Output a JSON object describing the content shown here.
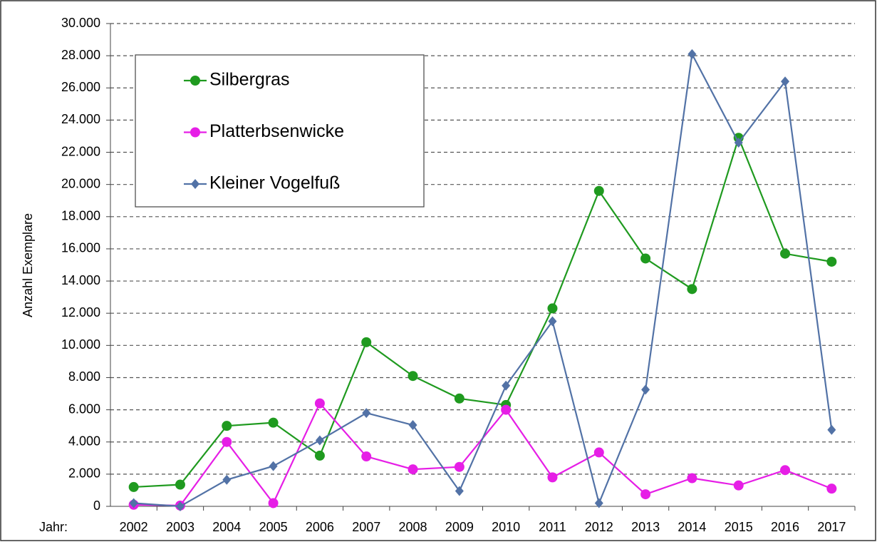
{
  "chart_data": {
    "type": "line",
    "ylabel": "Anzahl Exemplare",
    "xlabel": "Jahr:",
    "categories": [
      "2002",
      "2003",
      "2004",
      "2005",
      "2006",
      "2007",
      "2008",
      "2009",
      "2010",
      "2011",
      "2012",
      "2013",
      "2014",
      "2015",
      "2016",
      "2017"
    ],
    "series": [
      {
        "name": "Silbergras",
        "color": "#1f9a1f",
        "marker": "circle",
        "values": [
          1200,
          1350,
          5000,
          5200,
          3150,
          10200,
          8100,
          6700,
          6300,
          12300,
          19600,
          15400,
          13500,
          22900,
          15700,
          15200
        ]
      },
      {
        "name": "Platterbsenwicke",
        "color": "#e61ee6",
        "marker": "circle",
        "values": [
          100,
          50,
          4000,
          200,
          6400,
          3100,
          2300,
          2450,
          6000,
          1800,
          3350,
          750,
          1750,
          1300,
          2250,
          1100
        ]
      },
      {
        "name": "Kleiner Vogelfuß",
        "color": "#5272a6",
        "marker": "diamond",
        "values": [
          200,
          0,
          1650,
          2500,
          4100,
          5800,
          5050,
          950,
          7500,
          11500,
          200,
          7250,
          28100,
          22600,
          26400,
          4750
        ]
      }
    ],
    "ylim": [
      0,
      30000
    ],
    "yticks": [
      {
        "value": 0,
        "label": "0"
      },
      {
        "value": 2000,
        "label": "2.000"
      },
      {
        "value": 4000,
        "label": "4.000"
      },
      {
        "value": 6000,
        "label": "6.000"
      },
      {
        "value": 8000,
        "label": "8.000"
      },
      {
        "value": 10000,
        "label": "10.000"
      },
      {
        "value": 12000,
        "label": "12.000"
      },
      {
        "value": 14000,
        "label": "14.000"
      },
      {
        "value": 16000,
        "label": "16.000"
      },
      {
        "value": 18000,
        "label": "18.000"
      },
      {
        "value": 20000,
        "label": "20.000"
      },
      {
        "value": 22000,
        "label": "22.000"
      },
      {
        "value": 24000,
        "label": "24.000"
      },
      {
        "value": 26000,
        "label": "26.000"
      },
      {
        "value": 28000,
        "label": "28.000"
      },
      {
        "value": 30000,
        "label": "30.000"
      }
    ],
    "grid": true,
    "legend": "upper left"
  }
}
